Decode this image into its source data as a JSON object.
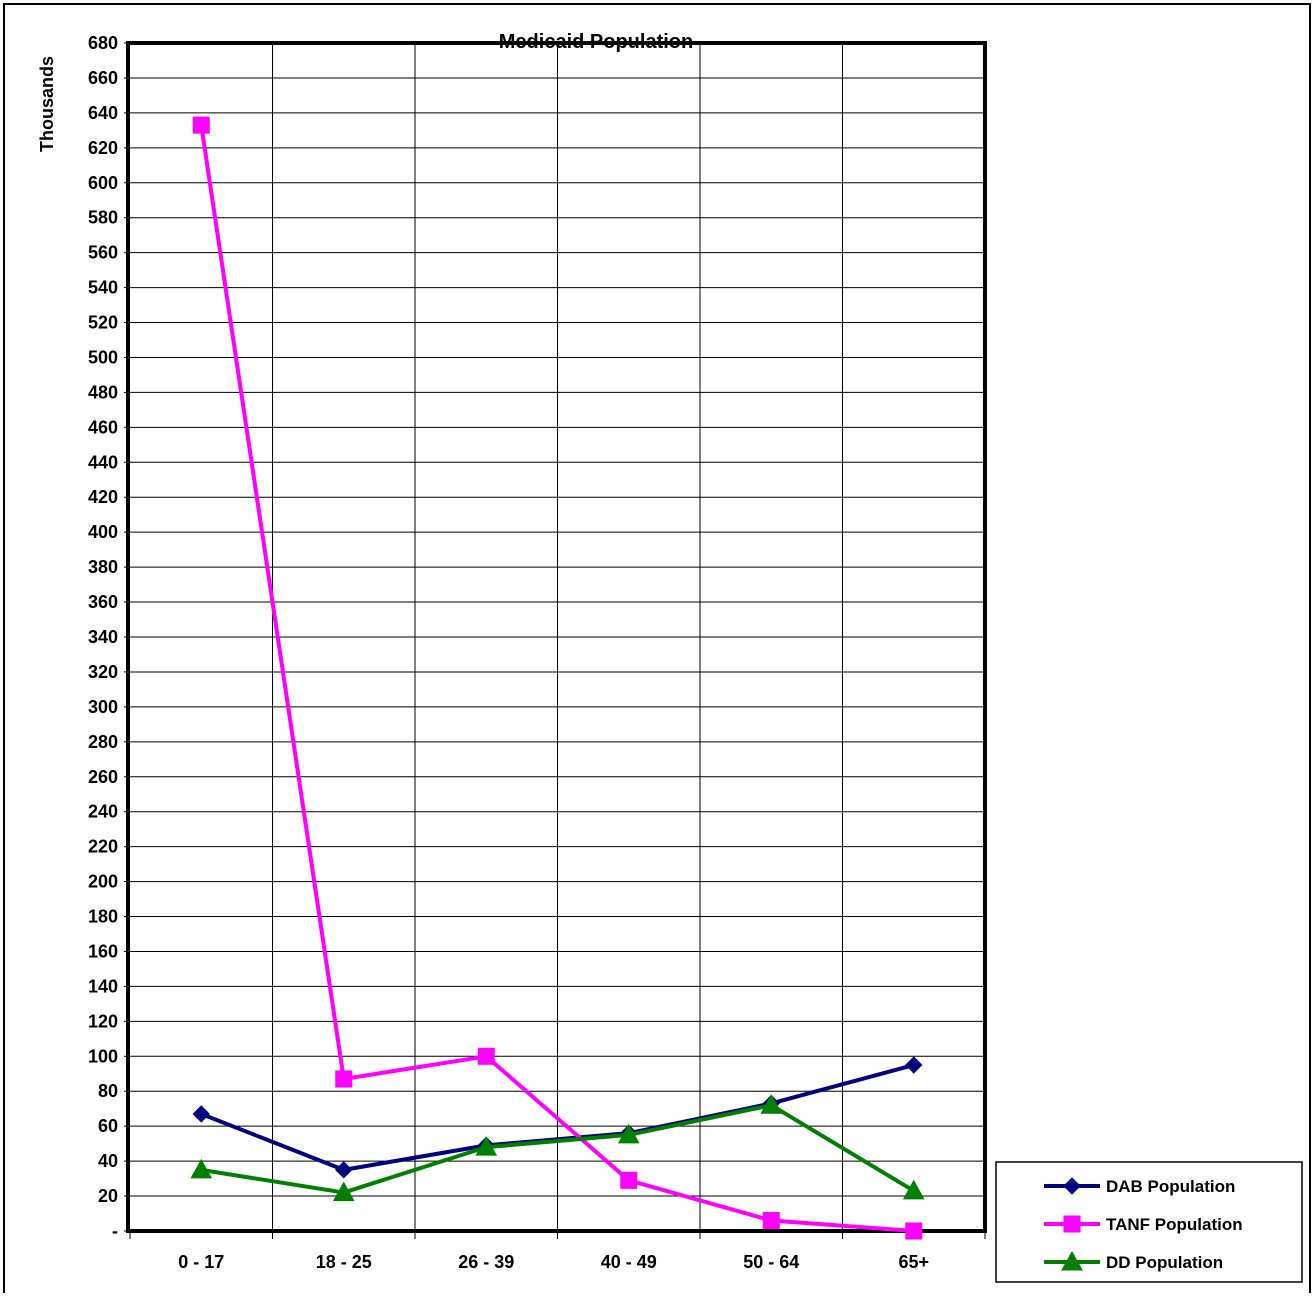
{
  "chart_data": {
    "type": "line",
    "title": "Medicaid Population",
    "ylabel": "Thousands",
    "xlabel": "",
    "categories": [
      "0 - 17",
      "18 - 25",
      "26 - 39",
      "40 - 49",
      "50 - 64",
      "65+"
    ],
    "ylim": [
      0,
      680
    ],
    "ytick_step": 20,
    "zero_tick_label": "-",
    "grid": true,
    "legend_position": "bottom-right",
    "series": [
      {
        "name": "DAB Population",
        "color": "#000080",
        "marker": "diamond",
        "values": [
          67,
          35,
          49,
          56,
          73,
          95
        ]
      },
      {
        "name": "TANF Population",
        "color": "#ff00ff",
        "marker": "square",
        "values": [
          633,
          87,
          100,
          29,
          6,
          0
        ]
      },
      {
        "name": "DD Population",
        "color": "#007f00",
        "marker": "triangle",
        "values": [
          35,
          22,
          48,
          55,
          72,
          23
        ]
      }
    ]
  }
}
